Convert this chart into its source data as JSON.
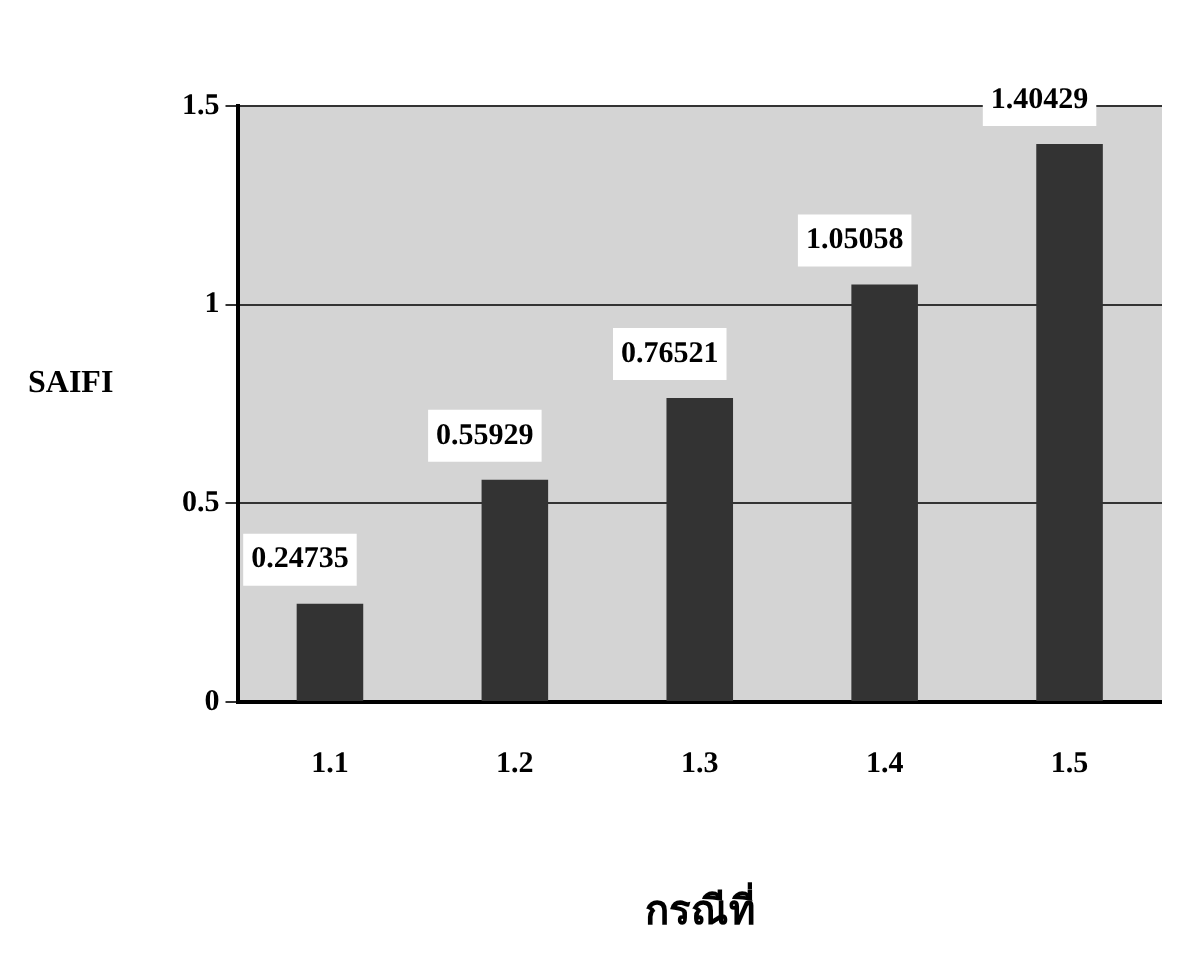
{
  "chart_data": {
    "type": "bar",
    "xlabel": "กรณีที่",
    "ylabel": "SAIFI",
    "categories": [
      "1.1",
      "1.2",
      "1.3",
      "1.4",
      "1.5"
    ],
    "values": [
      0.24735,
      0.55929,
      0.76521,
      1.05058,
      1.40429
    ],
    "color": "#333333",
    "ylim": [
      0,
      1.5
    ],
    "yticks": [
      0,
      0.5,
      1,
      1.5
    ],
    "grid": "y",
    "data_labels": true,
    "legend": false
  }
}
